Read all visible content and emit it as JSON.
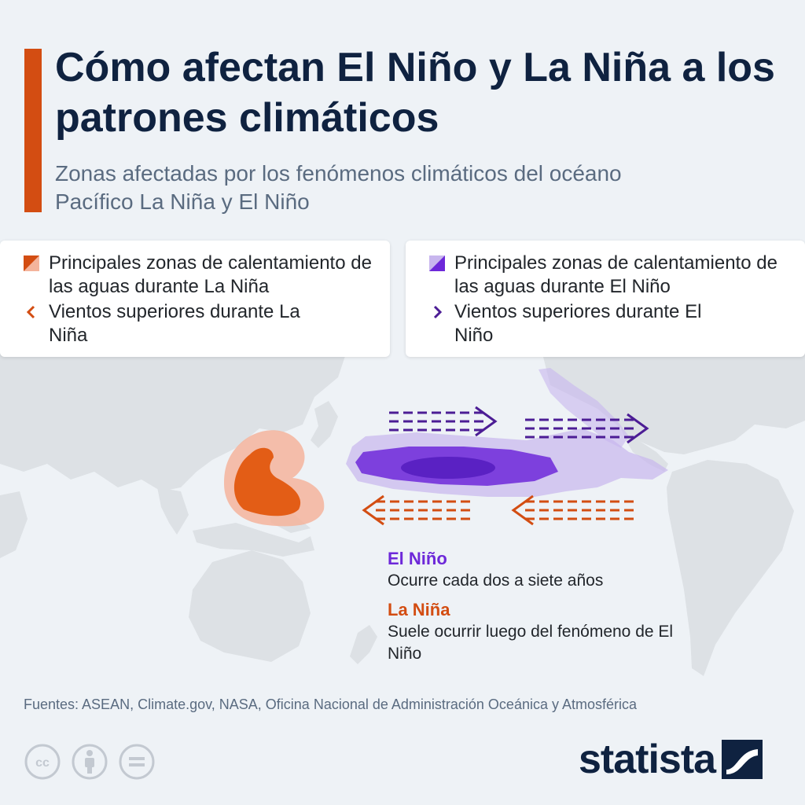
{
  "header": {
    "title": "Cómo afectan El Niño y La Niña a los patrones climáticos",
    "subtitle": "Zonas afectadas por los fenómenos climáticos del océano Pacífico La Niña y El Niño"
  },
  "legend": {
    "la_nina_zone": "Principales zonas de calentamiento de las aguas durante La Niña",
    "la_nina_winds": "Vientos superiores durante La Niña",
    "el_nino_zone": "Principales zonas de calentamiento de las aguas durante El Niño",
    "el_nino_winds": "Vientos superiores durante El Niño"
  },
  "notes": {
    "el_nino_title": "El Niño",
    "el_nino_text": "Ocurre cada dos a siete años",
    "la_nina_title": "La Niña",
    "la_nina_text": "Suele ocurrir luego del fenómeno de El Niño"
  },
  "footer": {
    "sources": "Fuentes: ASEAN, Climate.gov, NASA, Oficina Nacional de Administración Oceánica y Atmosférica",
    "brand": "statista"
  },
  "colors": {
    "la_nina": "#d34d12",
    "el_nino": "#6d28d9",
    "title": "#0f2240",
    "land": "#dde1e5"
  },
  "icons": [
    "cc-icon",
    "attribution-icon",
    "no-derivatives-icon",
    "statista-logo-icon"
  ]
}
